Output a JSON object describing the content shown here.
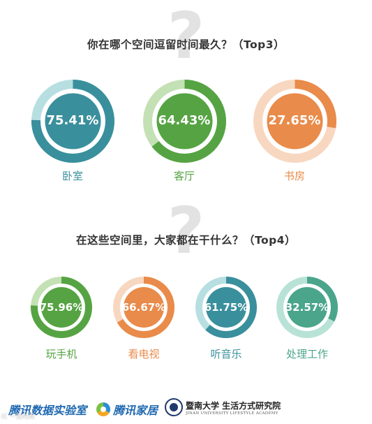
{
  "section1": {
    "question_mark": "?",
    "title": "你在哪个空间逗留时间最久？（Top3）"
  },
  "section2": {
    "question_mark": "?",
    "title": "在这些空间里，大家都在干什么？（Top4）"
  },
  "chart_data": [
    {
      "type": "pie",
      "title": "你在哪个空间逗留时间最久？（Top3）",
      "items": [
        {
          "label": "卧室",
          "value": 75.41,
          "text": "75.41%",
          "color": "#3a8f9c",
          "track": "#b7dfe2",
          "label_color": "#3a8f9c"
        },
        {
          "label": "客厅",
          "value": 64.43,
          "text": "64.43%",
          "color": "#56a343",
          "track": "#c4e1b5",
          "label_color": "#56a343"
        },
        {
          "label": "书房",
          "value": 27.65,
          "text": "27.65%",
          "color": "#e98b4a",
          "track": "#f8d7c0",
          "label_color": "#e98b4a"
        }
      ]
    },
    {
      "type": "pie",
      "title": "在这些空间里，大家都在干什么？（Top4）",
      "items": [
        {
          "label": "玩手机",
          "value": 75.96,
          "text": "75.96%",
          "color": "#56a343",
          "track": "#c4e1b5",
          "label_color": "#56a343"
        },
        {
          "label": "看电视",
          "value": 66.67,
          "text": "66.67%",
          "color": "#e98b4a",
          "track": "#f8d7c0",
          "label_color": "#e98b4a"
        },
        {
          "label": "听音乐",
          "value": 61.75,
          "text": "61.75%",
          "color": "#3a8f9c",
          "track": "#b7dfe2",
          "label_color": "#3a8f9c"
        },
        {
          "label": "处理工作",
          "value": 32.57,
          "text": "32.57%",
          "color": "#4aa58b",
          "track": "#b8e2d6",
          "label_color": "#4aa58b"
        }
      ]
    }
  ],
  "footer": {
    "brand1": "腾讯数据实验室",
    "brand2": "腾讯家居",
    "brand3_cn": "暨南大学 生活方式研究院",
    "brand3_en": "JINAN UNIVERSITY LIFESTYLE ACADEMY",
    "brand1_logo": "tencent-data-lab-logo",
    "brand2_logo": "tencent-home-logo",
    "brand3_logo": "jinan-university-seal"
  },
  "watermark": "iC 一览时尚"
}
